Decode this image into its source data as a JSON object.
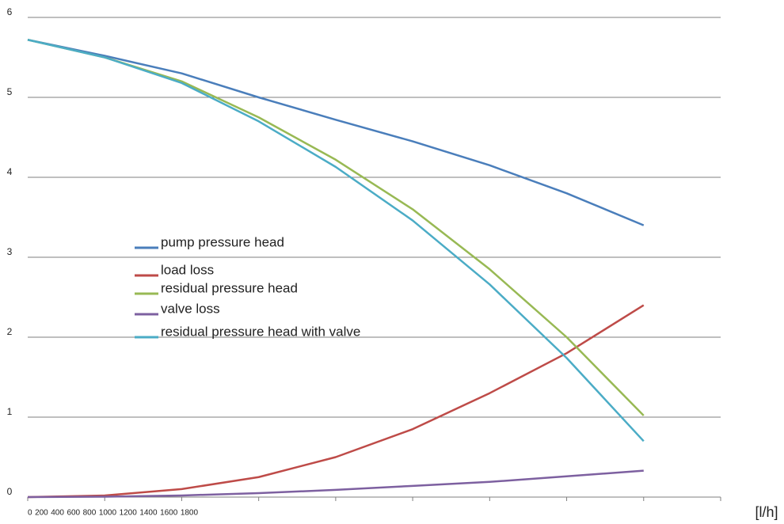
{
  "chart_data": {
    "type": "line",
    "x_label": "[l/h]",
    "categories": [
      "0",
      "200",
      "400",
      "600",
      "800",
      "1000",
      "1200",
      "1400",
      "1600",
      "1800"
    ],
    "ylim": [
      0,
      6
    ],
    "yticks": [
      0,
      1,
      2,
      3,
      4,
      5,
      6
    ],
    "grid": true,
    "series": [
      {
        "name": "pump pressure head",
        "color": "#4a7ebb",
        "values": [
          5.72,
          5.52,
          5.3,
          5.0,
          4.72,
          4.45,
          4.15,
          3.8,
          3.4,
          null
        ]
      },
      {
        "name": "load loss",
        "color": "#be4b48",
        "values": [
          0,
          0.02,
          0.1,
          0.25,
          0.5,
          0.85,
          1.3,
          1.8,
          2.4,
          null
        ]
      },
      {
        "name": "residual pressure head",
        "color": "#98b954",
        "values": [
          5.72,
          5.5,
          5.2,
          4.75,
          4.22,
          3.6,
          2.85,
          2.0,
          1.02,
          null
        ]
      },
      {
        "name": "valve loss",
        "color": "#7d60a0",
        "values": [
          0,
          0.005,
          0.02,
          0.05,
          0.09,
          0.14,
          0.19,
          0.26,
          0.33,
          null
        ]
      },
      {
        "name": "residual pressure head with valve",
        "color": "#4bacc6",
        "values": [
          5.72,
          5.5,
          5.18,
          4.7,
          4.13,
          3.46,
          2.66,
          1.74,
          0.7,
          null
        ]
      }
    ]
  }
}
